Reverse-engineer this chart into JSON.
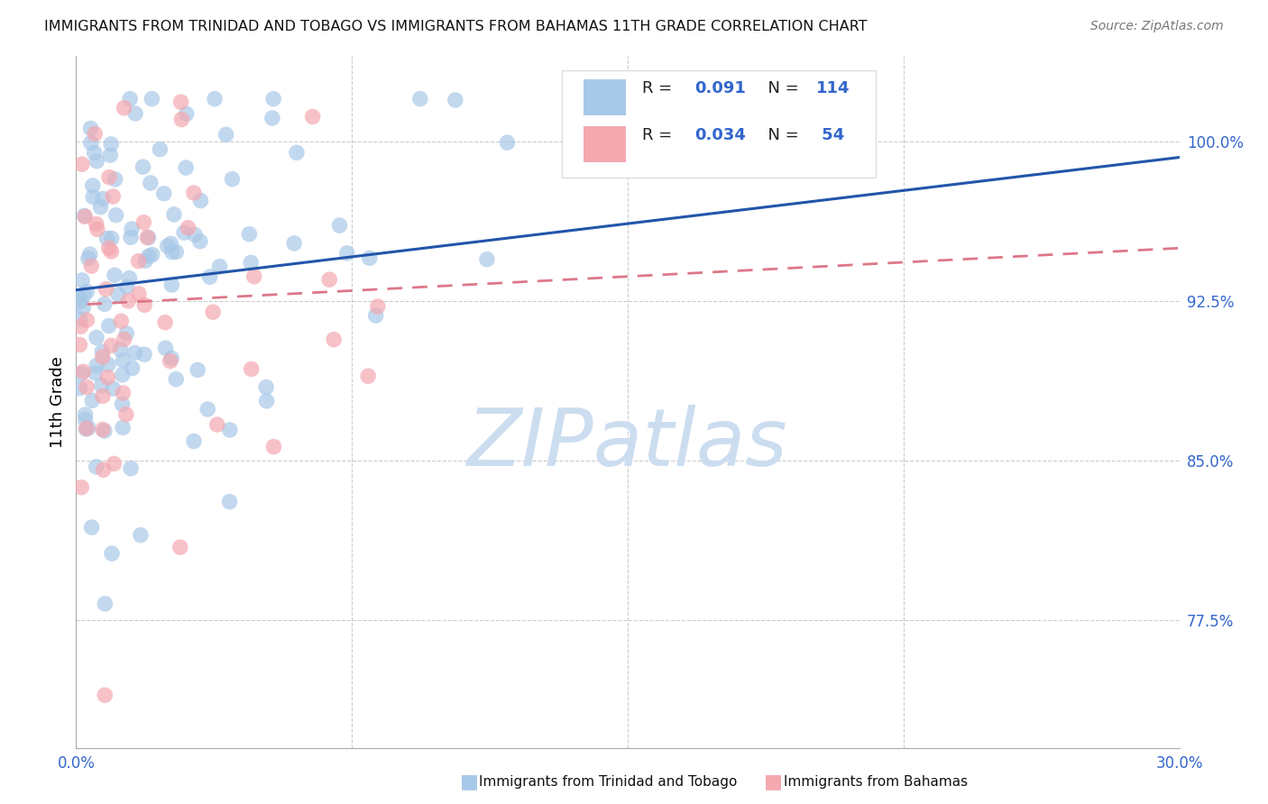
{
  "title": "IMMIGRANTS FROM TRINIDAD AND TOBAGO VS IMMIGRANTS FROM BAHAMAS 11TH GRADE CORRELATION CHART",
  "source": "Source: ZipAtlas.com",
  "ylabel": "11th Grade",
  "yticks": [
    "77.5%",
    "85.0%",
    "92.5%",
    "100.0%"
  ],
  "ytick_values": [
    0.775,
    0.85,
    0.925,
    1.0
  ],
  "xlim": [
    0.0,
    0.3
  ],
  "ylim": [
    0.715,
    1.04
  ],
  "R1": 0.091,
  "N1": 114,
  "R2": 0.034,
  "N2": 54,
  "color1": "#a8c8e8",
  "color2": "#f4a8b0",
  "trendline1_color": "#2255aa",
  "trendline2_color": "#dd7788",
  "footer_label1": "Immigrants from Trinidad and Tobago",
  "footer_label2": "Immigrants from Bahamas",
  "seed1": 12345,
  "seed2": 67890
}
